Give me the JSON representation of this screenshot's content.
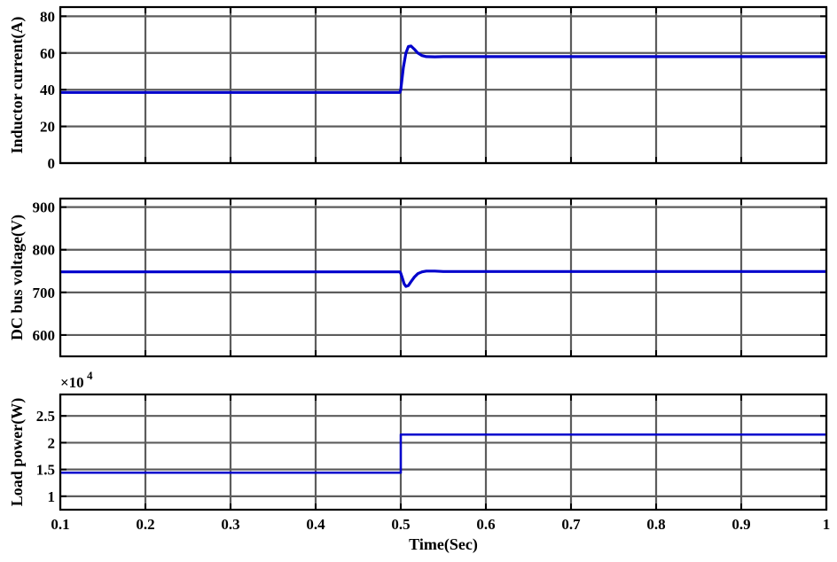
{
  "chart_data": [
    {
      "type": "line",
      "ylabel": "Inductor current(A)",
      "xlim": [
        0.1,
        1
      ],
      "ylim": [
        0,
        85
      ],
      "yticks": [
        "0",
        "20",
        "40",
        "60",
        "80"
      ],
      "ytick_values": [
        0,
        20,
        40,
        60,
        80
      ],
      "grid": true,
      "series": [
        {
          "color": "#0000cc",
          "x": [
            0.1,
            0.499,
            0.5,
            0.503,
            0.506,
            0.509,
            0.512,
            0.516,
            0.52,
            0.525,
            0.53,
            0.54,
            0.55,
            0.6,
            1.0
          ],
          "y": [
            38.5,
            38.5,
            40,
            52,
            60,
            63.5,
            63.8,
            62,
            60,
            58.6,
            58,
            57.9,
            58,
            58,
            58
          ]
        }
      ]
    },
    {
      "type": "line",
      "ylabel": "DC bus voltage(V)",
      "xlim": [
        0.1,
        1
      ],
      "ylim": [
        550,
        920
      ],
      "yticks": [
        "600",
        "700",
        "800",
        "900"
      ],
      "ytick_values": [
        600,
        700,
        800,
        900
      ],
      "grid": true,
      "series": [
        {
          "color": "#0000cc",
          "x": [
            0.1,
            0.499,
            0.5,
            0.502,
            0.504,
            0.506,
            0.509,
            0.512,
            0.516,
            0.52,
            0.525,
            0.53,
            0.54,
            0.55,
            0.6,
            1.0
          ],
          "y": [
            748,
            748,
            745,
            733,
            720,
            714,
            716,
            725,
            736,
            744,
            748,
            750,
            750,
            749,
            749,
            749
          ]
        }
      ]
    },
    {
      "type": "line",
      "ylabel": "Load power(W)",
      "xlabel": "Time(Sec)",
      "xlim": [
        0.1,
        1
      ],
      "ylim": [
        0.75,
        2.9
      ],
      "yticks": [
        "1",
        "1.5",
        "2",
        "2.5"
      ],
      "ytick_values": [
        1,
        1.5,
        2,
        2.5
      ],
      "xticks": [
        "0.1",
        "0.2",
        "0.3",
        "0.4",
        "0.5",
        "0.6",
        "0.7",
        "0.8",
        "0.9",
        "1"
      ],
      "xtick_values": [
        0.1,
        0.2,
        0.3,
        0.4,
        0.5,
        0.6,
        0.7,
        0.8,
        0.9,
        1.0
      ],
      "y_multiplier_base": "×10",
      "y_multiplier_exp": "4",
      "grid": true,
      "series": [
        {
          "color": "#0000cc",
          "x": [
            0.1,
            0.5,
            0.5,
            1.0
          ],
          "y": [
            1.44,
            1.44,
            2.15,
            2.15
          ]
        }
      ]
    }
  ]
}
